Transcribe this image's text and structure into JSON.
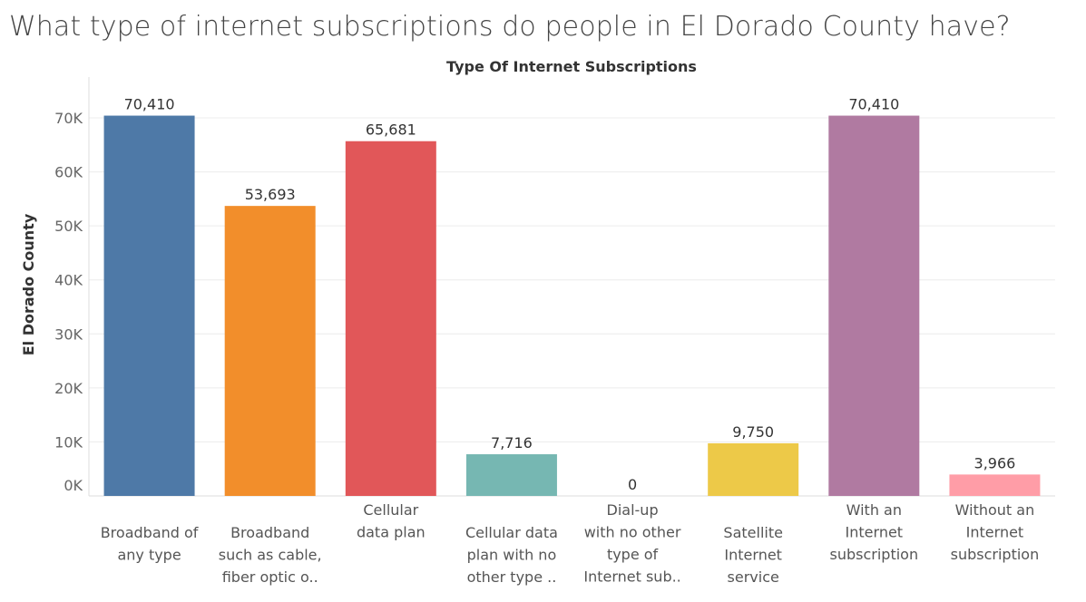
{
  "page": {
    "title": "What type of internet subscriptions do people in El Dorado County have?"
  },
  "chart_data": {
    "type": "bar",
    "title": "Type Of Internet Subscriptions",
    "xlabel": "",
    "ylabel": "El Dorado County",
    "ylim": [
      0,
      70000
    ],
    "yticks": [
      {
        "value": 0,
        "label": "0K"
      },
      {
        "value": 10000,
        "label": "10K"
      },
      {
        "value": 20000,
        "label": "20K"
      },
      {
        "value": 30000,
        "label": "30K"
      },
      {
        "value": 40000,
        "label": "40K"
      },
      {
        "value": 50000,
        "label": "50K"
      },
      {
        "value": 60000,
        "label": "60K"
      },
      {
        "value": 70000,
        "label": "70K"
      }
    ],
    "grid": true,
    "legend": "none",
    "categories": [
      "Broadband of any type",
      "Broadband such as cable, fiber optic o..",
      "Cellular data plan",
      "Cellular data plan with no other type ..",
      "Dial-up with no other type of Internet sub..",
      "Satellite Internet service",
      "With an Internet subscription",
      "Without an Internet subscription"
    ],
    "category_label_lines": [
      [
        "Broadband of",
        "any type"
      ],
      [
        "Broadband",
        "such as cable,",
        "fiber optic o.."
      ],
      [
        "Cellular",
        "data plan"
      ],
      [
        "Cellular data",
        "plan with no",
        "other type .."
      ],
      [
        "Dial-up",
        "with no other",
        "type of",
        "Internet sub.."
      ],
      [
        "Satellite",
        "Internet",
        "service"
      ],
      [
        "With an",
        "Internet",
        "subscription"
      ],
      [
        "Without an",
        "Internet",
        "subscription"
      ]
    ],
    "values": [
      70410,
      53693,
      65681,
      7716,
      0,
      9750,
      70410,
      3966
    ],
    "data_labels": [
      "70,410",
      "53,693",
      "65,681",
      "7,716",
      "0",
      "9,750",
      "70,410",
      "3,966"
    ],
    "colors": [
      "#4e79a7",
      "#f28e2b",
      "#e15759",
      "#76b7b2",
      "#59a14f",
      "#edc948",
      "#b07aa1",
      "#ff9da7"
    ]
  }
}
